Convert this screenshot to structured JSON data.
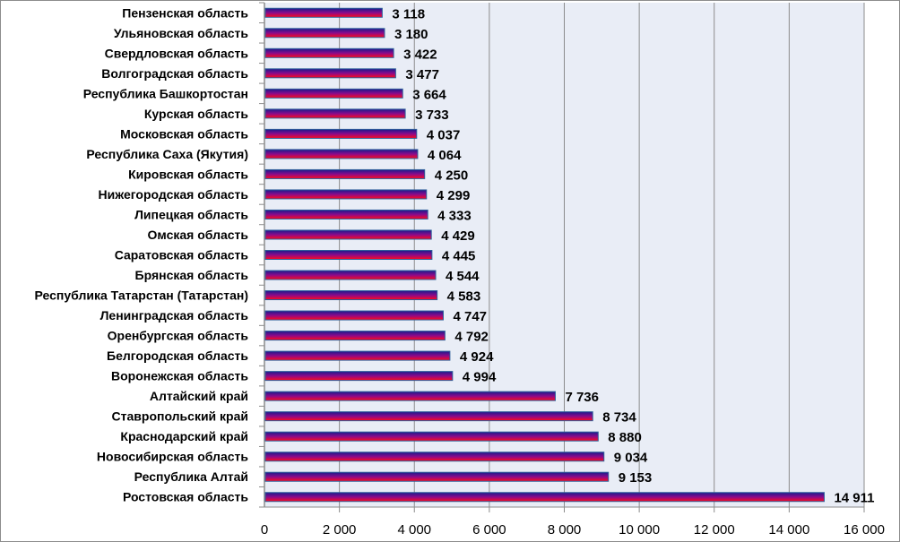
{
  "chart_data": {
    "type": "bar",
    "orientation": "horizontal",
    "title": "",
    "xlabel": "",
    "ylabel": "",
    "xlim": [
      0,
      16000
    ],
    "x_ticks": [
      0,
      2000,
      4000,
      6000,
      8000,
      10000,
      12000,
      14000,
      16000
    ],
    "x_tick_labels": [
      "0",
      "2 000",
      "4 000",
      "6 000",
      "8 000",
      "10 000",
      "12 000",
      "14 000",
      "16 000"
    ],
    "grid": "vertical",
    "legend": "none",
    "categories": [
      "Пензенская область",
      "Ульяновская область",
      "Свердловская область",
      "Волгоградская область",
      "Республика Башкортостан",
      "Курская область",
      "Московская область",
      "Республика Саха (Якутия)",
      "Кировская область",
      "Нижегородская область",
      "Липецкая область",
      "Омская область",
      "Саратовская область",
      "Брянская область",
      "Республика Татарстан (Татарстан)",
      "Ленинградская область",
      "Оренбургская область",
      "Белгородская область",
      "Воронежская область",
      "Алтайский край",
      "Ставропольский край",
      "Краснодарский край",
      "Новосибирская область",
      "Республика Алтай",
      "Ростовская область"
    ],
    "values": [
      3118,
      3180,
      3422,
      3477,
      3664,
      3733,
      4037,
      4064,
      4250,
      4299,
      4333,
      4429,
      4445,
      4544,
      4583,
      4747,
      4792,
      4924,
      4994,
      7736,
      8734,
      8880,
      9034,
      9153,
      14911
    ],
    "value_labels": [
      "3 118",
      "3 180",
      "3 422",
      "3 477",
      "3 664",
      "3 733",
      "4 037",
      "4 064",
      "4 250",
      "4 299",
      "4 333",
      "4 429",
      "4 445",
      "4 544",
      "4 583",
      "4 747",
      "4 792",
      "4 924",
      "4 994",
      "7 736",
      "8 734",
      "8 880",
      "9 034",
      "9 153",
      "14 911"
    ],
    "colors": {
      "bar_top": "#1a1a8c",
      "bar_mid": "#8b0a8b",
      "bar_bottom": "#ff0a1a",
      "bar_border": "#2f5f9a",
      "plot_bg": "#e9edf6",
      "grid": "#8c8c8c"
    }
  }
}
